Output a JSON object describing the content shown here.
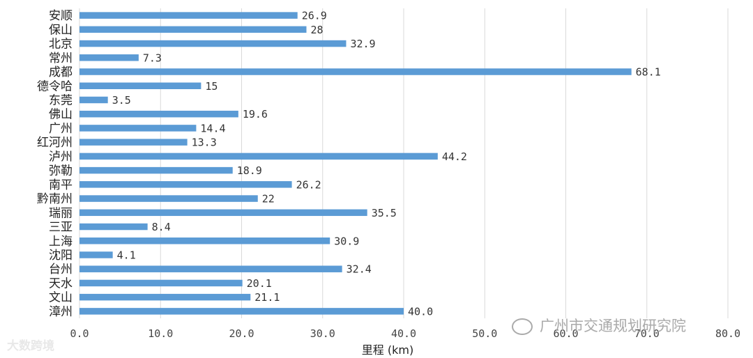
{
  "chart_data": {
    "type": "bar",
    "orientation": "horizontal",
    "categories": [
      "安顺",
      "保山",
      "北京",
      "常州",
      "成都",
      "德令哈",
      "东莞",
      "佛山",
      "广州",
      "红河州",
      "泸州",
      "弥勒",
      "南平",
      "黔南州",
      "瑞丽",
      "三亚",
      "上海",
      "沈阳",
      "台州",
      "天水",
      "文山",
      "漳州"
    ],
    "values": [
      26.9,
      28,
      32.9,
      7.3,
      68.1,
      15,
      3.5,
      19.6,
      14.4,
      13.3,
      44.2,
      18.9,
      26.2,
      22,
      35.5,
      8.4,
      30.9,
      4.1,
      32.4,
      20.1,
      21.1,
      40.0
    ],
    "value_labels": [
      "26.9",
      "28",
      "32.9",
      "7.3",
      "68.1",
      "15",
      "3.5",
      "19.6",
      "14.4",
      "13.3",
      "44.2",
      "18.9",
      "26.2",
      "22",
      "35.5",
      "8.4",
      "30.9",
      "4.1",
      "32.4",
      "20.1",
      "21.1",
      "40.0"
    ],
    "xlabel": "里程 (km)",
    "xlim": [
      0,
      80
    ],
    "xticks": [
      "0.0",
      "10.0",
      "20.0",
      "30.0",
      "40.0",
      "50.0",
      "60.0",
      "70.0",
      "80.0"
    ],
    "grid": true,
    "bar_color": "#5b9bd5"
  },
  "watermarks": {
    "left": "大数跨境",
    "right": "广州市交通规划研究院"
  }
}
